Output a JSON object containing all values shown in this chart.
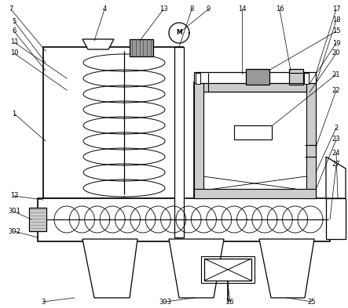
{
  "bg_color": "#ffffff",
  "lc": "#000000",
  "gray_med": "#999999",
  "gray_light": "#cccccc",
  "gray_dark": "#666666",
  "gray_hatch": "#aaaaaa"
}
